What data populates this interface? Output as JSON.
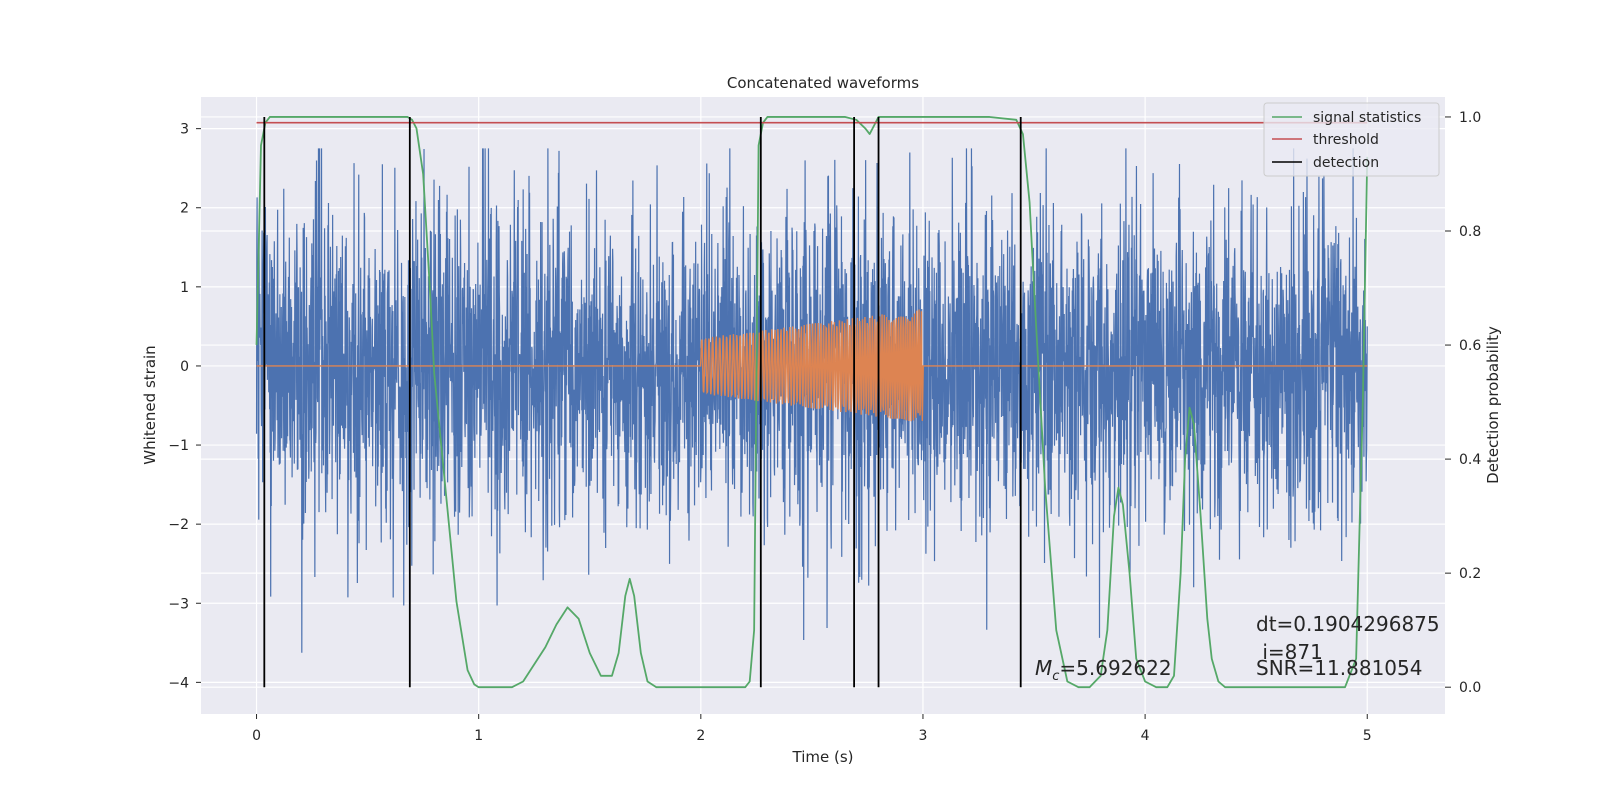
{
  "chart_data": {
    "type": "line",
    "title": "Concatenated waveforms",
    "xlabel": "Time (s)",
    "ylabel_left": "Whitened strain",
    "ylabel_right": "Detection probability",
    "xlim": [
      -0.25,
      5.35
    ],
    "ylim_left": [
      -4.4,
      3.4
    ],
    "ylim_right": [
      -0.047,
      1.035
    ],
    "x_ticks": [
      0,
      1,
      2,
      3,
      4,
      5
    ],
    "y_left_ticks": [
      -4,
      -3,
      -2,
      -1,
      0,
      1,
      2,
      3
    ],
    "y_right_ticks": [
      0.0,
      0.2,
      0.4,
      0.6,
      0.8,
      1.0
    ],
    "grid": true,
    "legend_placement": "top-right",
    "series": [
      {
        "name": "signal statistics",
        "axis": "right",
        "color": "#55a868",
        "x": [
          0.0,
          0.02,
          0.04,
          0.06,
          0.1,
          0.2,
          0.4,
          0.6,
          0.68,
          0.7,
          0.72,
          0.75,
          0.78,
          0.8,
          0.85,
          0.9,
          0.95,
          0.98,
          1.0,
          1.05,
          1.1,
          1.15,
          1.2,
          1.25,
          1.3,
          1.35,
          1.4,
          1.45,
          1.5,
          1.55,
          1.6,
          1.63,
          1.66,
          1.68,
          1.7,
          1.73,
          1.76,
          1.8,
          1.9,
          2.0,
          2.1,
          2.2,
          2.22,
          2.24,
          2.26,
          2.28,
          2.3,
          2.35,
          2.5,
          2.65,
          2.7,
          2.74,
          2.76,
          2.78,
          2.8,
          2.85,
          3.0,
          3.3,
          3.42,
          3.45,
          3.48,
          3.5,
          3.55,
          3.6,
          3.65,
          3.7,
          3.75,
          3.8,
          3.83,
          3.86,
          3.88,
          3.9,
          3.93,
          3.96,
          4.0,
          4.05,
          4.1,
          4.13,
          4.16,
          4.18,
          4.2,
          4.22,
          4.25,
          4.28,
          4.3,
          4.33,
          4.36,
          4.4,
          4.5,
          4.7,
          4.9,
          4.95,
          4.98,
          5.0
        ],
        "values": [
          0.6,
          0.95,
          0.99,
          1.0,
          1.0,
          1.0,
          1.0,
          1.0,
          1.0,
          0.995,
          0.98,
          0.9,
          0.7,
          0.55,
          0.35,
          0.15,
          0.03,
          0.005,
          0.0,
          0.0,
          0.0,
          0.0,
          0.01,
          0.04,
          0.07,
          0.11,
          0.14,
          0.12,
          0.06,
          0.02,
          0.02,
          0.06,
          0.16,
          0.19,
          0.16,
          0.06,
          0.01,
          0.0,
          0.0,
          0.0,
          0.0,
          0.0,
          0.01,
          0.1,
          0.95,
          0.99,
          1.0,
          1.0,
          1.0,
          1.0,
          0.995,
          0.98,
          0.97,
          0.985,
          1.0,
          1.0,
          1.0,
          1.0,
          0.995,
          0.97,
          0.85,
          0.7,
          0.35,
          0.1,
          0.01,
          0.0,
          0.0,
          0.02,
          0.1,
          0.3,
          0.35,
          0.32,
          0.2,
          0.05,
          0.01,
          0.0,
          0.0,
          0.02,
          0.2,
          0.4,
          0.49,
          0.46,
          0.3,
          0.12,
          0.05,
          0.01,
          0.0,
          0.0,
          0.0,
          0.0,
          0.0,
          0.05,
          0.5,
          0.93
        ]
      },
      {
        "name": "threshold",
        "axis": "right",
        "color": "#c44e52",
        "x": [
          0.0,
          5.0
        ],
        "values": [
          0.99,
          0.99
        ]
      },
      {
        "name": "detection",
        "axis": "right",
        "color": "#000000",
        "x": [
          0.035,
          0.69,
          2.27,
          2.69,
          2.8,
          3.44
        ],
        "values": [
          1.0,
          1.0,
          1.0,
          1.0,
          1.0,
          1.0
        ]
      },
      {
        "axis": "left",
        "color": "#4c72b0",
        "kind": "noise",
        "x_range": [
          0.0,
          5.0
        ],
        "amplitude": 1.0
      },
      {
        "axis": "left",
        "color": "#dd8452",
        "kind": "chirp",
        "x_range": [
          0.0,
          5.0
        ],
        "chirp_range": [
          2.0,
          3.0
        ],
        "amplitude_start": 0.35,
        "amplitude_end": 0.72
      }
    ],
    "annotations": {
      "mc_prefix": "M",
      "mc_subscript": "c",
      "mc_value": "=5.692622",
      "dt_text": "dt=0.1904296875",
      "i_text": " i=871",
      "snr_text": "SNR=11.881054"
    }
  }
}
